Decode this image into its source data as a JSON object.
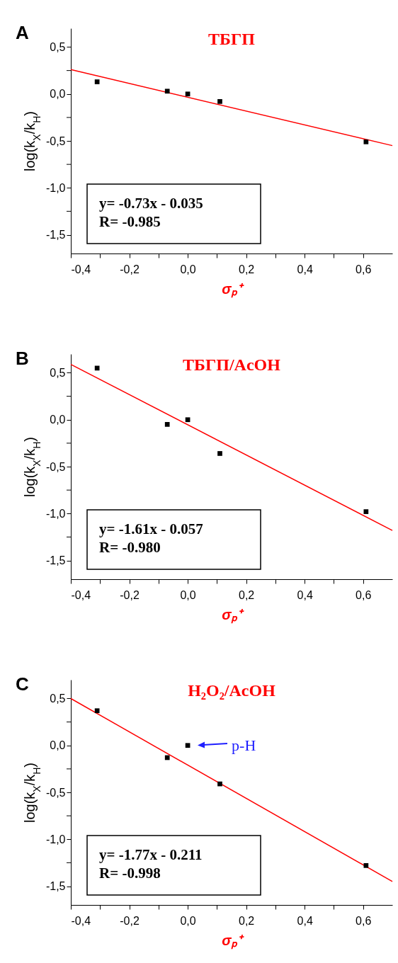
{
  "chart_data": [
    {
      "type": "scatter",
      "title": "ТБГП",
      "xlabel": "σₚ⁺",
      "ylabel": "log(k$_{X}$/k$_{H}$)",
      "annotations": [
        "A",
        "y= -0.73x - 0.035",
        "R= -0.985"
      ],
      "xlim": [
        -0.4,
        0.7
      ],
      "xticks": [
        {
          "value": -0.4,
          "label": "-0,4"
        },
        {
          "value": -0.3,
          "label": null
        },
        {
          "value": -0.2,
          "label": "-0,2"
        },
        {
          "value": -0.1,
          "label": null
        },
        {
          "value": 0,
          "label": "0,0"
        },
        {
          "value": 0.1,
          "label": null
        },
        {
          "value": 0.2,
          "label": "0,2"
        },
        {
          "value": 0.3,
          "label": null
        },
        {
          "value": 0.4,
          "label": "0,4"
        },
        {
          "value": 0.5,
          "label": null
        },
        {
          "value": 0.6,
          "label": "0,6"
        }
      ],
      "ylim": [
        -1.7,
        0.7
      ],
      "yticks": [
        {
          "value": 0.5,
          "label": "0,5"
        },
        {
          "value": 0.25,
          "label": null
        },
        {
          "value": 0,
          "label": "0,0"
        },
        {
          "value": -0.25,
          "label": null
        },
        {
          "value": -0.5,
          "label": "-0,5"
        },
        {
          "value": -0.75,
          "label": null
        },
        {
          "value": -1,
          "label": "-1,0"
        },
        {
          "value": -1.25,
          "label": null
        },
        {
          "value": -1.5,
          "label": "-1,5"
        }
      ],
      "series": [
        {
          "type": "line",
          "color": "#ff0000",
          "x": [
            -0.4,
            0.7
          ],
          "values": [
            0.26,
            -0.55
          ]
        },
        {
          "type": "scatter",
          "color": "#000000",
          "marker": "square",
          "x": [
            -0.31,
            -0.07,
            0,
            0.11,
            0.61
          ],
          "values": [
            0.13,
            0.03,
            0,
            -0.08,
            -0.51
          ]
        }
      ]
    },
    {
      "type": "scatter",
      "title": "ТБГП/AcOH",
      "xlabel": "σₚ⁺",
      "ylabel": "log(k$_{X}$/k$_{H}$)",
      "annotations": [
        "B",
        "y= -1.61x - 0.057",
        "R= -0.980"
      ],
      "xlim": [
        -0.4,
        0.7
      ],
      "xticks": [
        {
          "value": -0.4,
          "label": "-0,4"
        },
        {
          "value": -0.3,
          "label": null
        },
        {
          "value": -0.2,
          "label": "-0,2"
        },
        {
          "value": -0.1,
          "label": null
        },
        {
          "value": 0,
          "label": "0,0"
        },
        {
          "value": 0.1,
          "label": null
        },
        {
          "value": 0.2,
          "label": "0,2"
        },
        {
          "value": 0.3,
          "label": null
        },
        {
          "value": 0.4,
          "label": "0,4"
        },
        {
          "value": 0.5,
          "label": null
        },
        {
          "value": 0.6,
          "label": "0,6"
        }
      ],
      "ylim": [
        -1.7,
        0.7
      ],
      "yticks": [
        {
          "value": 0.5,
          "label": "0,5"
        },
        {
          "value": 0.25,
          "label": null
        },
        {
          "value": 0,
          "label": "0,0"
        },
        {
          "value": -0.25,
          "label": null
        },
        {
          "value": -0.5,
          "label": "-0,5"
        },
        {
          "value": -0.75,
          "label": null
        },
        {
          "value": -1,
          "label": "-1,0"
        },
        {
          "value": -1.25,
          "label": null
        },
        {
          "value": -1.5,
          "label": "-1,5"
        }
      ],
      "series": [
        {
          "type": "line",
          "color": "#ff0000",
          "x": [
            -0.4,
            0.7
          ],
          "values": [
            0.59,
            -1.18
          ]
        },
        {
          "type": "scatter",
          "color": "#000000",
          "marker": "square",
          "x": [
            -0.31,
            -0.07,
            0,
            0.11,
            0.61
          ],
          "values": [
            0.55,
            -0.05,
            0,
            -0.36,
            -0.98
          ]
        }
      ]
    },
    {
      "type": "scatter",
      "title": "H₂O₂/AcOH",
      "xlabel": "σₚ⁺",
      "ylabel": "log(k$_{X}$/k$_{H}$)",
      "annotations": [
        "C",
        "y= -1.77x - 0.211",
        "R= -0.998",
        {
          "text": "p-H",
          "x": 0,
          "y": 0
        }
      ],
      "xlim": [
        -0.4,
        0.7
      ],
      "xticks": [
        {
          "value": -0.4,
          "label": "-0,4"
        },
        {
          "value": -0.3,
          "label": null
        },
        {
          "value": -0.2,
          "label": "-0,2"
        },
        {
          "value": -0.1,
          "label": null
        },
        {
          "value": 0,
          "label": "0,0"
        },
        {
          "value": 0.1,
          "label": null
        },
        {
          "value": 0.2,
          "label": "0,2"
        },
        {
          "value": 0.3,
          "label": null
        },
        {
          "value": 0.4,
          "label": "0,4"
        },
        {
          "value": 0.5,
          "label": null
        },
        {
          "value": 0.6,
          "label": "0,6"
        }
      ],
      "ylim": [
        -1.7,
        0.7
      ],
      "yticks": [
        {
          "value": 0.5,
          "label": "0,5"
        },
        {
          "value": 0.25,
          "label": null
        },
        {
          "value": 0,
          "label": "0,0"
        },
        {
          "value": -0.25,
          "label": null
        },
        {
          "value": -0.5,
          "label": "-0,5"
        },
        {
          "value": -0.75,
          "label": null
        },
        {
          "value": -1,
          "label": "-1,0"
        },
        {
          "value": -1.25,
          "label": null
        },
        {
          "value": -1.5,
          "label": "-1,5"
        }
      ],
      "series": [
        {
          "type": "line",
          "color": "#ff0000",
          "x": [
            -0.4,
            0.7
          ],
          "values": [
            0.5,
            -1.45
          ]
        },
        {
          "type": "scatter",
          "color": "#000000",
          "marker": "square",
          "x": [
            -0.31,
            -0.07,
            0,
            0.11,
            0.61
          ],
          "values": [
            0.37,
            -0.13,
            0,
            -0.41,
            -1.28
          ]
        }
      ]
    }
  ]
}
